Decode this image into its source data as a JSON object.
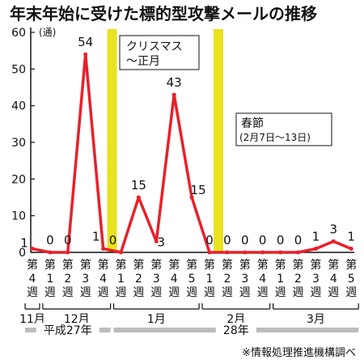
{
  "chart_data": {
    "type": "line",
    "title": "年末年始に受けた標的型攻撃メールの推移",
    "ylabel": "(通)",
    "ylim": [
      0,
      60
    ],
    "yticks": [
      0,
      10,
      20,
      30,
      40,
      50,
      60
    ],
    "grid": false,
    "categories": [
      "第4週",
      "第1週",
      "第2週",
      "第3週",
      "第4週",
      "第1週",
      "第2週",
      "第3週",
      "第4週",
      "第5週",
      "第1週",
      "第2週",
      "第3週",
      "第4週",
      "第1週",
      "第2週",
      "第3週",
      "第4週",
      "第5週"
    ],
    "series": [
      {
        "values": [
          1,
          0,
          0,
          54,
          1,
          0,
          15,
          3,
          43,
          15,
          0,
          0,
          0,
          0,
          0,
          0,
          1,
          3,
          1
        ],
        "color": "#e8202a"
      }
    ],
    "data_labels": [
      "1",
      "0",
      "0",
      "54",
      "1",
      "0",
      "15",
      "3",
      "43",
      "15",
      "0",
      "0",
      "0",
      "0",
      "0",
      "0",
      "1",
      "3",
      "1"
    ],
    "month_groups": [
      {
        "label": "11月",
        "start": 0,
        "end": 0
      },
      {
        "label": "12月",
        "start": 1,
        "end": 4
      },
      {
        "label": "1月",
        "start": 5,
        "end": 9
      },
      {
        "label": "2月",
        "start": 10,
        "end": 13
      },
      {
        "label": "3月",
        "start": 14,
        "end": 18
      }
    ],
    "year_groups": [
      {
        "label": "平成27年",
        "start": 0,
        "end": 4
      },
      {
        "label": "28年",
        "start": 5,
        "end": 18
      }
    ],
    "annotations": [
      {
        "lines": [
          "クリスマス",
          "〜正月"
        ],
        "band_index": 4.5,
        "color": "#e8e21f"
      },
      {
        "lines": [
          "春節",
          "(2月7日〜13日)"
        ],
        "band_index": 10.5,
        "color": "#e8e21f"
      }
    ],
    "source": "※情報処理推進機構調べ"
  }
}
